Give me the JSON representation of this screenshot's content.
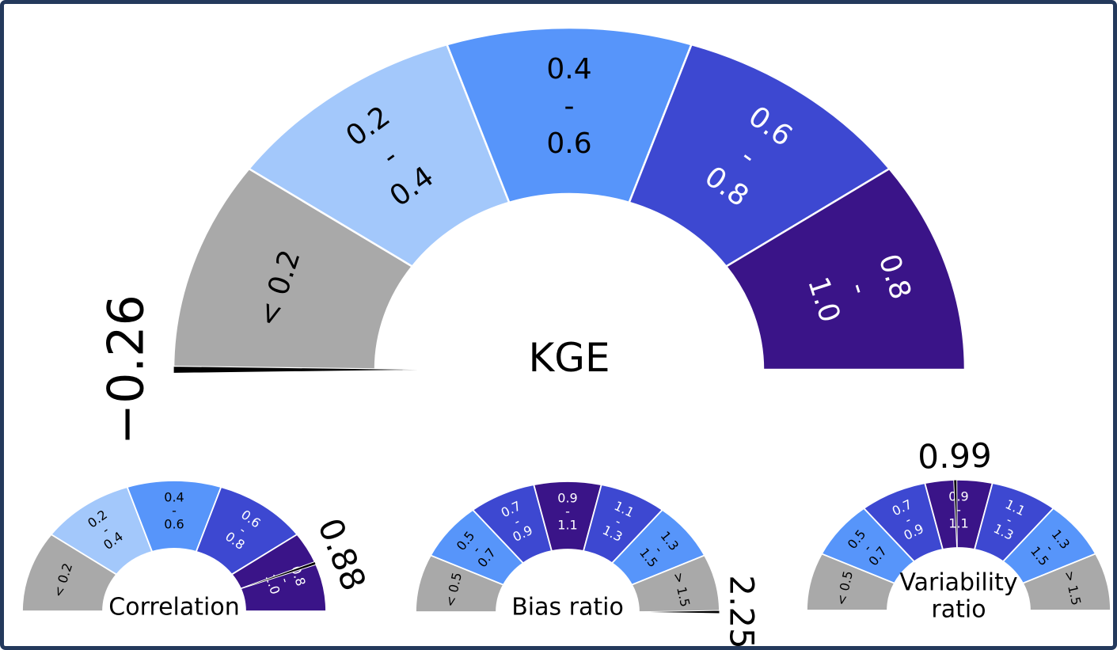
{
  "frame": {
    "background": "#ffffff",
    "border_color": "#24395c"
  },
  "style": {
    "needle_color": "#000000",
    "separator_color": "#ffffff",
    "band_colors": {
      "out_of_range": "#a9a9a9",
      "poor": "#a3c8fb",
      "fair": "#5795fa",
      "good": "#3d48d1",
      "excellent": "#3a1488"
    }
  },
  "chart_data": [
    {
      "id": "kge",
      "type": "pie",
      "subtype": "half-donut-gauge",
      "title": "KGE",
      "title_lines": [
        "KGE"
      ],
      "value": -0.26,
      "value_label": "−0.26",
      "scale": {
        "min": 0,
        "max": 1
      },
      "legend_position": "none",
      "segments": [
        {
          "range": "< 0.2",
          "lines": [
            "< 0.2"
          ],
          "color": "#a9a9a9",
          "text_color": "#000000"
        },
        {
          "range": "0.2 - 0.4",
          "lines": [
            "0.2",
            "-",
            "0.4"
          ],
          "color": "#a3c8fb",
          "text_color": "#000000"
        },
        {
          "range": "0.4 - 0.6",
          "lines": [
            "0.4",
            "-",
            "0.6"
          ],
          "color": "#5795fa",
          "text_color": "#000000"
        },
        {
          "range": "0.6 - 0.8",
          "lines": [
            "0.6",
            "-",
            "0.8"
          ],
          "color": "#3d48d1",
          "text_color": "#ffffff"
        },
        {
          "range": "0.8 - 1.0",
          "lines": [
            "0.8",
            "-",
            "1.0"
          ],
          "color": "#3a1488",
          "text_color": "#ffffff"
        }
      ]
    },
    {
      "id": "correlation",
      "type": "pie",
      "subtype": "half-donut-gauge",
      "title": "Correlation",
      "title_lines": [
        "Correlation"
      ],
      "value": 0.88,
      "value_label": "0.88",
      "scale": {
        "min": 0,
        "max": 1
      },
      "legend_position": "none",
      "segments": [
        {
          "range": "< 0.2",
          "lines": [
            "< 0.2"
          ],
          "color": "#a9a9a9",
          "text_color": "#000000"
        },
        {
          "range": "0.2 - 0.4",
          "lines": [
            "0.2",
            "-",
            "0.4"
          ],
          "color": "#a3c8fb",
          "text_color": "#000000"
        },
        {
          "range": "0.4 - 0.6",
          "lines": [
            "0.4",
            "-",
            "0.6"
          ],
          "color": "#5795fa",
          "text_color": "#000000"
        },
        {
          "range": "0.6 - 0.8",
          "lines": [
            "0.6",
            "-",
            "0.8"
          ],
          "color": "#3d48d1",
          "text_color": "#ffffff"
        },
        {
          "range": "0.8 - 1.0",
          "lines": [
            "0.8",
            "-",
            "1.0"
          ],
          "color": "#3a1488",
          "text_color": "#ffffff"
        }
      ]
    },
    {
      "id": "bias_ratio",
      "type": "pie",
      "subtype": "half-donut-gauge",
      "title": "Bias ratio",
      "title_lines": [
        "Bias ratio"
      ],
      "value": 2.25,
      "value_label": "2.25",
      "scale": {
        "min": 0.3,
        "max": 1.7
      },
      "legend_position": "none",
      "segments": [
        {
          "range": "< 0.5",
          "lines": [
            "< 0.5"
          ],
          "color": "#a9a9a9",
          "text_color": "#000000"
        },
        {
          "range": "0.5 - 0.7",
          "lines": [
            "0.5",
            "-",
            "0.7"
          ],
          "color": "#5795fa",
          "text_color": "#000000"
        },
        {
          "range": "0.7 - 0.9",
          "lines": [
            "0.7",
            "-",
            "0.9"
          ],
          "color": "#3d48d1",
          "text_color": "#ffffff"
        },
        {
          "range": "0.9 - 1.1",
          "lines": [
            "0.9",
            "-",
            "1.1"
          ],
          "color": "#3a1488",
          "text_color": "#ffffff"
        },
        {
          "range": "1.1 - 1.3",
          "lines": [
            "1.1",
            "-",
            "1.3"
          ],
          "color": "#3d48d1",
          "text_color": "#ffffff"
        },
        {
          "range": "1.3 - 1.5",
          "lines": [
            "1.3",
            "-",
            "1.5"
          ],
          "color": "#5795fa",
          "text_color": "#000000"
        },
        {
          "range": "> 1.5",
          "lines": [
            "> 1.5"
          ],
          "color": "#a9a9a9",
          "text_color": "#000000"
        }
      ]
    },
    {
      "id": "variability_ratio",
      "type": "pie",
      "subtype": "half-donut-gauge",
      "title": "Variability ratio",
      "title_lines": [
        "Variability",
        "ratio"
      ],
      "value": 0.99,
      "value_label": "0.99",
      "scale": {
        "min": 0.3,
        "max": 1.7
      },
      "legend_position": "none",
      "segments": [
        {
          "range": "< 0.5",
          "lines": [
            "< 0.5"
          ],
          "color": "#a9a9a9",
          "text_color": "#000000"
        },
        {
          "range": "0.5 - 0.7",
          "lines": [
            "0.5",
            "-",
            "0.7"
          ],
          "color": "#5795fa",
          "text_color": "#000000"
        },
        {
          "range": "0.7 - 0.9",
          "lines": [
            "0.7",
            "-",
            "0.9"
          ],
          "color": "#3d48d1",
          "text_color": "#ffffff"
        },
        {
          "range": "0.9 - 1.1",
          "lines": [
            "0.9",
            "-",
            "1.1"
          ],
          "color": "#3a1488",
          "text_color": "#ffffff"
        },
        {
          "range": "1.1 - 1.3",
          "lines": [
            "1.1",
            "-",
            "1.3"
          ],
          "color": "#3d48d1",
          "text_color": "#ffffff"
        },
        {
          "range": "1.3 - 1.5",
          "lines": [
            "1.3",
            "-",
            "1.5"
          ],
          "color": "#5795fa",
          "text_color": "#000000"
        },
        {
          "range": "> 1.5",
          "lines": [
            "> 1.5"
          ],
          "color": "#a9a9a9",
          "text_color": "#000000"
        }
      ]
    }
  ]
}
